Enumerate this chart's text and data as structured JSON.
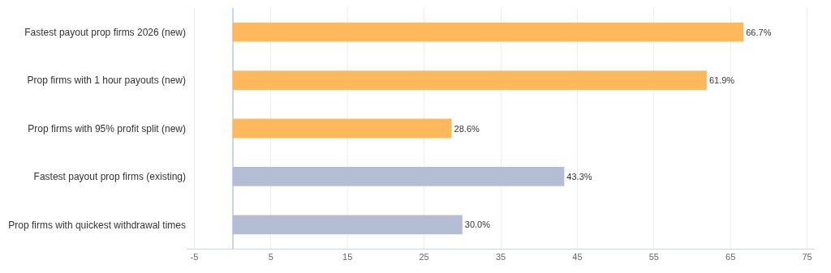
{
  "chart_data": {
    "type": "bar",
    "orientation": "horizontal",
    "categories": [
      "Fastest payout prop firms 2026 (new)",
      "Prop firms with 1 hour payouts (new)",
      "Prop firms with 95% profit split (new)",
      "Fastest payout prop firms (existing)",
      "Prop firms with quickest withdrawal times"
    ],
    "values": [
      66.7,
      61.9,
      28.6,
      43.3,
      30.0
    ],
    "colors": [
      "#ffb95c",
      "#ffb95c",
      "#ffb95c",
      "#b3bdd3",
      "#b3bdd3"
    ],
    "value_labels": [
      "66.7%",
      "61.9%",
      "28.6%",
      "43.3%",
      "30.0%"
    ],
    "xlim": [
      -6,
      76
    ],
    "xticks": [
      -5,
      5,
      15,
      25,
      35,
      45,
      55,
      65,
      75
    ],
    "grid": "x",
    "legend": false
  }
}
